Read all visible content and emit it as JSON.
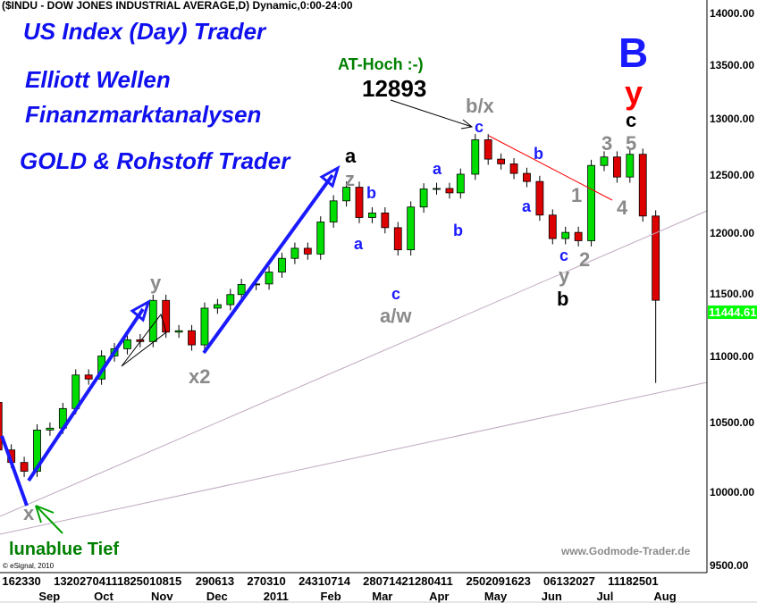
{
  "header": {
    "title": "($INDU - DOW JONES INDUSTRIAL AVERAGE,D) Dynamic,0:00-24:00"
  },
  "branding": {
    "line1": "US Index (Day) Trader",
    "line2": "Elliott Wellen",
    "line3": "Finanzmarktanalysen",
    "line4": "GOLD & Rohstoff Trader",
    "website": "www.Godmode-Trader.de",
    "copyright": "© eSignal, 2010"
  },
  "annotations": {
    "at_hoch": "AT-Hoch :-)",
    "at_hoch_value": "12893",
    "big_b": "B",
    "red_y": "y",
    "top_c": "c",
    "bx": "b/x",
    "bx_c": "c",
    "feb_a": "a",
    "feb_z": "z",
    "feb_b": "b",
    "feb_a2": "a",
    "apr_a": "a",
    "apr_b": "b",
    "mar_c": "c",
    "mar_aw": "a/w",
    "may_b": "b",
    "may_a": "a",
    "jun_1": "1",
    "jun_c": "c",
    "jun_y": "y",
    "jun_bb": "b",
    "jun_2": "2",
    "jul_3": "3",
    "jul_5": "5",
    "jul_4": "4",
    "nov_y": "y",
    "dec_x2": "x2",
    "aug_x": "x",
    "lunablue": "lunablue Tief"
  },
  "colors": {
    "up": "#00dd00",
    "down": "#dd0000",
    "promo": "#1010ee",
    "wave_blue": "#1a1aff",
    "wave_gray": "#8a8a8a",
    "trend_red": "#ff0000",
    "trend_purple": "#c0a8c0",
    "last_price_bg": "#00ff00",
    "green_text": "#008000"
  },
  "chart_data": {
    "type": "candlestick",
    "title": "($INDU - DOW JONES INDUSTRIAL AVERAGE,D) Dynamic,0:00-24:00",
    "y_scale": "log",
    "ylim": [
      9500,
      14000
    ],
    "grid": false,
    "y_axis": "right",
    "y_ticks": [
      "14000.00",
      "13500.00",
      "13000.00",
      "12500.00",
      "12000.00",
      "11500.00",
      "11000.00",
      "10500.00",
      "10000.00",
      "9500.00"
    ],
    "last_price": "11444.61",
    "x_day_ticks": [
      {
        "label": "162330",
        "date": "2010-08-16"
      },
      {
        "label": "1320270411182501 0815",
        "date": "2010-09-13"
      },
      {
        "label": "290613",
        "date": "2010-11-29"
      },
      {
        "label": "270310",
        "date": "2010-12-27"
      },
      {
        "label": "24310714",
        "date": "2011-01-24"
      },
      {
        "label": "2807142128 0411",
        "date": "2011-02-28"
      },
      {
        "label": "2502091623",
        "date": "2011-04-25"
      },
      {
        "label": "06132027",
        "date": "2011-06-06"
      },
      {
        "label": "11182501",
        "date": "2011-07-11"
      }
    ],
    "x_month_ticks": [
      {
        "label": "Sep",
        "date": "2010-09-01"
      },
      {
        "label": "Oct",
        "date": "2010-10-01"
      },
      {
        "label": "Nov",
        "date": "2010-11-01"
      },
      {
        "label": "Dec",
        "date": "2010-12-01"
      },
      {
        "label": "2011",
        "date": "2011-01-01"
      },
      {
        "label": "Feb",
        "date": "2011-02-01"
      },
      {
        "label": "Mar",
        "date": "2011-03-01"
      },
      {
        "label": "Apr",
        "date": "2011-04-01"
      },
      {
        "label": "May",
        "date": "2011-05-01"
      },
      {
        "label": "Jun",
        "date": "2011-06-01"
      },
      {
        "label": "Jul",
        "date": "2011-07-01"
      },
      {
        "label": "Aug",
        "date": "2011-08-01"
      }
    ],
    "first_open": 10653,
    "weeks": [
      [
        "2010-08-13",
        10303
      ],
      [
        "2010-08-20",
        10213
      ],
      [
        "2010-08-27",
        10150
      ],
      [
        "2010-09-03",
        10448
      ],
      [
        "2010-09-10",
        10462
      ],
      [
        "2010-09-17",
        10607
      ],
      [
        "2010-09-24",
        10860
      ],
      [
        "2010-10-01",
        10829
      ],
      [
        "2010-10-08",
        11006
      ],
      [
        "2010-10-15",
        11062
      ],
      [
        "2010-10-22",
        11132
      ],
      [
        "2010-10-29",
        11118
      ],
      [
        "2010-11-05",
        11444
      ],
      [
        "2010-11-12",
        11192
      ],
      [
        "2010-11-19",
        11203
      ],
      [
        "2010-11-26",
        11092
      ],
      [
        "2010-12-03",
        11382
      ],
      [
        "2010-12-10",
        11410
      ],
      [
        "2010-12-17",
        11491
      ],
      [
        "2010-12-23",
        11573
      ],
      [
        "2010-12-31",
        11577
      ],
      [
        "2011-01-07",
        11674
      ],
      [
        "2011-01-14",
        11787
      ],
      [
        "2011-01-21",
        11871
      ],
      [
        "2011-01-28",
        11823
      ],
      [
        "2011-02-04",
        12092
      ],
      [
        "2011-02-11",
        12273
      ],
      [
        "2011-02-18",
        12391
      ],
      [
        "2011-02-25",
        12130
      ],
      [
        "2011-03-04",
        12169
      ],
      [
        "2011-03-11",
        12044
      ],
      [
        "2011-03-18",
        11858
      ],
      [
        "2011-03-25",
        12220
      ],
      [
        "2011-04-01",
        12376
      ],
      [
        "2011-04-08",
        12380
      ],
      [
        "2011-04-15",
        12342
      ],
      [
        "2011-04-21",
        12505
      ],
      [
        "2011-04-29",
        12811
      ],
      [
        "2011-05-06",
        12638
      ],
      [
        "2011-05-13",
        12596
      ],
      [
        "2011-05-20",
        12512
      ],
      [
        "2011-05-27",
        12441
      ],
      [
        "2011-06-03",
        12151
      ],
      [
        "2011-06-10",
        11952
      ],
      [
        "2011-06-17",
        12004
      ],
      [
        "2011-06-24",
        11934
      ],
      [
        "2011-07-01",
        12582
      ],
      [
        "2011-07-08",
        12657
      ],
      [
        "2011-07-15",
        12480
      ],
      [
        "2011-07-22",
        12681
      ],
      [
        "2011-07-29",
        12143
      ],
      [
        "2011-08-05",
        11445
      ]
    ]
  }
}
